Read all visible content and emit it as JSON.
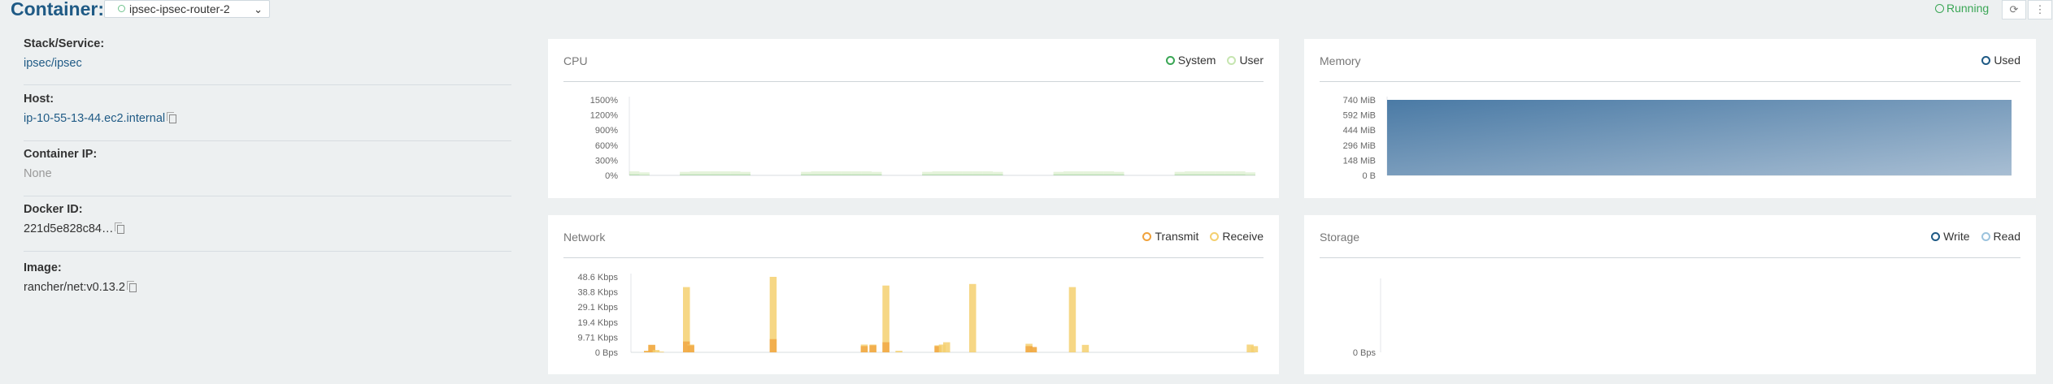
{
  "header": {
    "title": "Container:",
    "container_select_value": "ipsec-ipsec-router-2",
    "status": "Running",
    "refresh_icon": "refresh-icon",
    "more_icon": "kebab-menu-icon"
  },
  "info": {
    "items": [
      {
        "label": "Stack/Service:",
        "value": "ipsec/ipsec"
      },
      {
        "label": "Host:",
        "value": "ip-10-55-13-44.ec2.internal"
      },
      {
        "label": "Container IP:",
        "value": "None"
      },
      {
        "label": "Docker ID:",
        "value": "221d5e828c84…"
      },
      {
        "label": "Image:",
        "value": "rancher/net:v0.13.2"
      }
    ]
  },
  "colors": {
    "accent": "#1f5a85",
    "running": "#3aa655",
    "system": "#3aa655",
    "user": "#c6e5b0",
    "memory": "#4b7aa3",
    "transmit": "#f0a23c",
    "receive": "#f4d070",
    "write": "#1f5a85",
    "read": "#9cc3dd"
  },
  "cards": {
    "cpu": {
      "title": "CPU",
      "legend": [
        "System",
        "User"
      ]
    },
    "memory": {
      "title": "Memory",
      "legend": [
        "Used"
      ]
    },
    "network": {
      "title": "Network",
      "legend": [
        "Transmit",
        "Receive"
      ]
    },
    "storage": {
      "title": "Storage",
      "legend": [
        "Write",
        "Read"
      ]
    }
  },
  "chart_data": [
    {
      "type": "area",
      "title": "CPU",
      "yticks": [
        "1500%",
        "1200%",
        "900%",
        "600%",
        "300%",
        "0%"
      ],
      "ylim": [
        0,
        1500
      ],
      "series": [
        {
          "name": "System",
          "values": [
            20,
            10,
            0,
            0,
            0,
            20,
            20,
            20,
            20,
            20,
            20,
            20,
            0,
            0,
            0,
            0,
            0,
            20,
            20,
            20,
            20,
            20,
            20,
            20,
            20,
            0,
            0,
            0,
            0,
            20,
            20,
            20,
            20,
            20,
            20,
            20,
            20,
            0,
            0,
            0,
            0,
            0,
            20,
            20,
            20,
            20,
            20,
            20,
            20,
            0,
            0,
            0,
            0,
            0,
            20,
            20,
            20,
            20,
            20,
            20,
            20,
            10
          ]
        },
        {
          "name": "User",
          "values": [
            80,
            60,
            0,
            0,
            0,
            70,
            80,
            80,
            80,
            80,
            80,
            70,
            0,
            0,
            0,
            0,
            0,
            70,
            80,
            80,
            80,
            80,
            80,
            80,
            70,
            0,
            0,
            0,
            0,
            70,
            80,
            80,
            80,
            80,
            80,
            80,
            70,
            0,
            0,
            0,
            0,
            0,
            70,
            80,
            80,
            80,
            80,
            80,
            70,
            0,
            0,
            0,
            0,
            0,
            70,
            80,
            80,
            80,
            80,
            80,
            80,
            60
          ]
        }
      ]
    },
    {
      "type": "area",
      "title": "Memory",
      "yticks": [
        "740 MiB",
        "592 MiB",
        "444 MiB",
        "296 MiB",
        "148 MiB",
        "0 B"
      ],
      "ylim": [
        0,
        740
      ],
      "series": [
        {
          "name": "Used",
          "values": [
            740,
            740
          ]
        }
      ]
    },
    {
      "type": "bar",
      "title": "Network",
      "yticks": [
        "48.6 Kbps",
        "38.8 Kbps",
        "29.1 Kbps",
        "19.4 Kbps",
        "9.71 Kbps",
        "0 Bps"
      ],
      "ylim": [
        0,
        48.6
      ],
      "series": [
        {
          "name": "Transmit",
          "values": [
            0,
            0,
            0,
            0.8,
            4.8,
            0,
            0,
            0,
            0,
            0,
            0,
            0,
            7,
            4.5,
            0,
            0,
            0,
            0,
            0,
            0,
            0,
            0,
            0,
            0,
            0,
            0,
            0,
            0,
            0,
            0,
            0,
            0,
            8.5,
            0,
            0,
            0,
            0,
            0,
            0,
            0,
            0,
            0,
            0,
            0,
            0,
            0,
            0,
            0,
            0,
            0,
            0,
            0,
            0,
            4,
            0,
            4.5,
            0,
            0,
            6.5,
            0,
            0,
            0,
            0,
            0,
            0,
            0,
            0,
            0,
            0,
            0,
            4,
            0,
            0,
            0,
            0,
            0,
            0,
            0,
            0,
            0,
            0,
            0,
            0,
            0,
            0,
            0,
            0,
            0,
            0,
            0,
            0,
            4,
            3.5,
            0,
            0,
            0,
            0,
            0,
            0,
            0,
            0,
            0,
            0,
            0,
            0,
            0,
            0,
            0,
            0,
            0,
            0,
            0,
            0,
            0,
            0,
            0,
            0,
            0,
            0,
            0,
            0,
            0,
            0,
            0,
            0,
            0,
            0,
            0,
            0,
            0,
            0,
            0,
            0,
            0,
            0,
            0,
            0,
            0,
            0,
            0,
            0,
            0,
            0,
            0,
            0,
            0,
            0,
            0
          ]
        },
        {
          "name": "Receive",
          "values": [
            0,
            0,
            0,
            1,
            4.8,
            1.5,
            0.5,
            0,
            0,
            0,
            0,
            0,
            42,
            5,
            0,
            0,
            0,
            0,
            0,
            0,
            0,
            0,
            0,
            0,
            0,
            0,
            0,
            0,
            0,
            0,
            0,
            0,
            48.6,
            0,
            0,
            0,
            0,
            0,
            0,
            0,
            0,
            0,
            0,
            0,
            0,
            0,
            0,
            0,
            0,
            0,
            0,
            0,
            0,
            5,
            0,
            5,
            0,
            0,
            43,
            0,
            0,
            1,
            0,
            0,
            0,
            0,
            0,
            0,
            0,
            0,
            4.5,
            5,
            6.5,
            0,
            0,
            0,
            0,
            0,
            44,
            0,
            0,
            0,
            0,
            0,
            0,
            0,
            0,
            0,
            0,
            0,
            0,
            5.5,
            3,
            0,
            0,
            0,
            0,
            0,
            0,
            0,
            0,
            42,
            0,
            0,
            4.8,
            0,
            0,
            0,
            0,
            0,
            0,
            0,
            0,
            0,
            0,
            0,
            0,
            0,
            0,
            0,
            0,
            0,
            0,
            0,
            0,
            0,
            0,
            0,
            0,
            0,
            0,
            0,
            0,
            0,
            0,
            0,
            0,
            0,
            0,
            0,
            0,
            0,
            5,
            4
          ]
        }
      ]
    },
    {
      "type": "line",
      "title": "Storage",
      "yticks": [
        "0 Bps"
      ],
      "series": []
    }
  ]
}
